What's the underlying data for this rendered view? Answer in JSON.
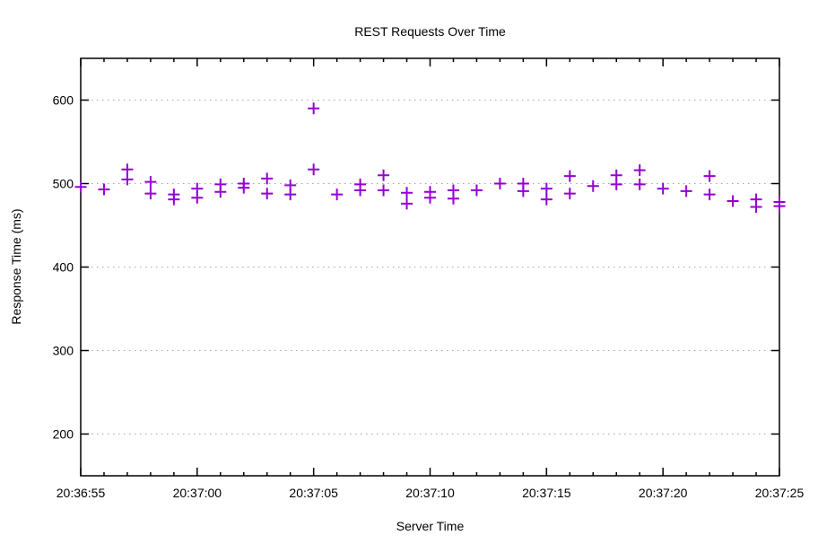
{
  "chart_data": {
    "type": "scatter",
    "title": "REST Requests Over Time",
    "xlabel": "Server Time",
    "ylabel": "Response Time (ms)",
    "x_start_time": "20:36:55",
    "x_ticks": [
      "20:36:55",
      "20:37:00",
      "20:37:05",
      "20:37:10",
      "20:37:15",
      "20:37:20",
      "20:37:25"
    ],
    "x_tick_seconds": [
      0,
      5,
      10,
      15,
      20,
      25,
      30
    ],
    "x_minor_tick_interval_s": 1,
    "xlim_seconds": [
      0,
      30
    ],
    "y_ticks": [
      200,
      300,
      400,
      500,
      600
    ],
    "ylim": [
      150,
      650
    ],
    "grid": "horizontal-dotted",
    "legend": "none",
    "marker": "plus",
    "marker_color": "#9400d3",
    "border_color": "#000000",
    "grid_color": "#a6a6a6",
    "background_color": "#ffffff",
    "text_color": "#000000",
    "points_offset_s_ms": [
      [
        0,
        496
      ],
      [
        1,
        493
      ],
      [
        2,
        517
      ],
      [
        2,
        505
      ],
      [
        3,
        502
      ],
      [
        3,
        488
      ],
      [
        4,
        487
      ],
      [
        4,
        481
      ],
      [
        5,
        494
      ],
      [
        5,
        483
      ],
      [
        6,
        499
      ],
      [
        6,
        490
      ],
      [
        7,
        500
      ],
      [
        7,
        495
      ],
      [
        8,
        506
      ],
      [
        8,
        488
      ],
      [
        9,
        498
      ],
      [
        9,
        487
      ],
      [
        10,
        590
      ],
      [
        10,
        517
      ],
      [
        11,
        487
      ],
      [
        12,
        499
      ],
      [
        12,
        492
      ],
      [
        13,
        510
      ],
      [
        13,
        492
      ],
      [
        14,
        489
      ],
      [
        14,
        476
      ],
      [
        15,
        490
      ],
      [
        15,
        483
      ],
      [
        16,
        492
      ],
      [
        16,
        482
      ],
      [
        17,
        492
      ],
      [
        18,
        500
      ],
      [
        19,
        500
      ],
      [
        19,
        491
      ],
      [
        20,
        494
      ],
      [
        20,
        481
      ],
      [
        21,
        509
      ],
      [
        21,
        488
      ],
      [
        22,
        497
      ],
      [
        23,
        510
      ],
      [
        23,
        499
      ],
      [
        24,
        516
      ],
      [
        24,
        499
      ],
      [
        25,
        494
      ],
      [
        26,
        491
      ],
      [
        27,
        509
      ],
      [
        27,
        487
      ],
      [
        28,
        479
      ],
      [
        29,
        481
      ],
      [
        29,
        472
      ],
      [
        30,
        478
      ],
      [
        30,
        473
      ]
    ]
  }
}
